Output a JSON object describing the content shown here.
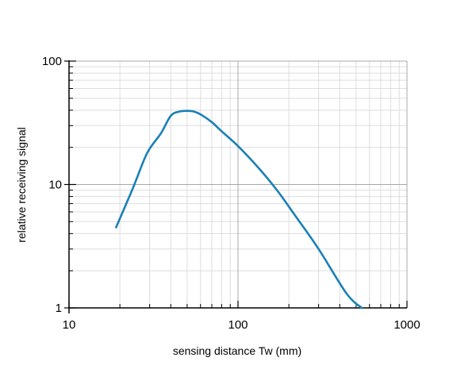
{
  "chart_data": {
    "type": "line",
    "title": "",
    "xlabel": "sensing distance Tw (mm)",
    "ylabel": "relative receiving signal",
    "x_scale": "log",
    "y_scale": "log",
    "xlim": [
      10,
      1000
    ],
    "ylim": [
      1,
      100
    ],
    "grid": true,
    "x_ticks": [
      {
        "value": 10,
        "label": "10"
      },
      {
        "value": 100,
        "label": "100"
      },
      {
        "value": 1000,
        "label": "1000"
      }
    ],
    "y_ticks": [
      {
        "value": 1,
        "label": "1"
      },
      {
        "value": 10,
        "label": "10"
      },
      {
        "value": 100,
        "label": "100"
      }
    ],
    "series": [
      {
        "color": "#1a80b6",
        "x": [
          19,
          24,
          29,
          35,
          40,
          45,
          50,
          55,
          60,
          70,
          80,
          100,
          130,
          170,
          220,
          300,
          440,
          540
        ],
        "y": [
          4.5,
          9.5,
          18,
          26,
          36,
          39,
          39.5,
          39,
          37,
          32,
          27,
          20.5,
          14,
          9,
          5.5,
          3,
          1.3,
          1
        ]
      }
    ]
  }
}
